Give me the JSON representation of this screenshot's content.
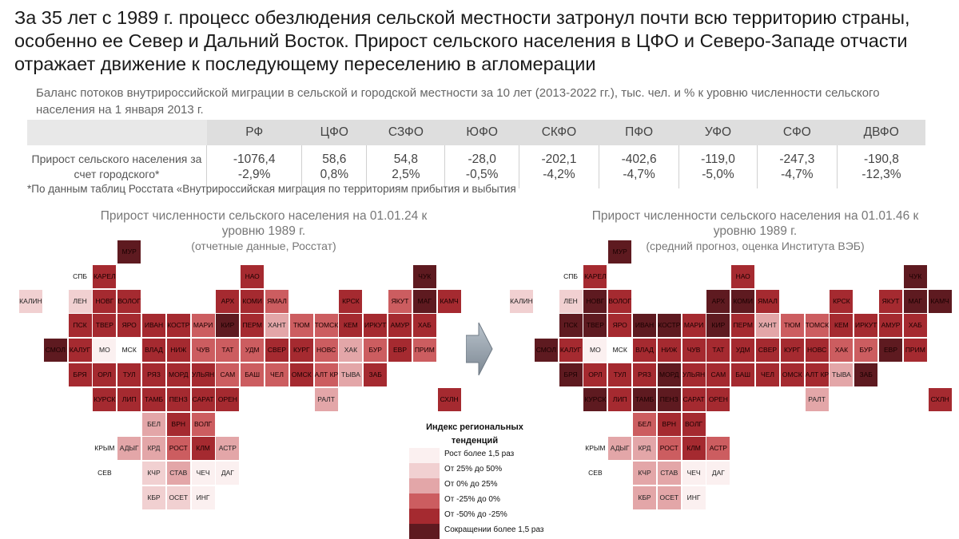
{
  "headline": "За 35 лет с 1989 г. процесс обезлюдения сельской местности затронул почти всю территорию страны, особенно ее Север и Дальний Восток. Прирост сельского населения в ЦФО и Северо-Западе отчасти отражает движение к последующему переселению в агломерации",
  "subtitle": "Баланс потоков внутрироссийской миграции в сельской и городской местности за 10 лет (2013-2022 гг.), тыс. чел. и % к уровню численности сельского населения на 1 января 2013 г.",
  "balance_table": {
    "headers": [
      "РФ",
      "ЦФО",
      "СЗФО",
      "ЮФО",
      "СКФО",
      "ПФО",
      "УФО",
      "СФО",
      "ДВФО"
    ],
    "row_label": "Прирост сельского населения за счет городского*",
    "values": [
      "-1076,4",
      "58,6",
      "54,8",
      "-28,0",
      "-202,1",
      "-402,6",
      "-119,0",
      "-247,3",
      "-190,8"
    ],
    "percents": [
      "-2,9%",
      "0,8%",
      "2,5%",
      "-0,5%",
      "-4,2%",
      "-4,7%",
      "-5,0%",
      "-4,7%",
      "-12,3%"
    ]
  },
  "footnote": "*По данным таблиц Росстата «Внутрироссийская миграция по территориям прибытия и выбытия",
  "maps": [
    {
      "title": "Прирост численности сельского населения на 01.01.24 к уровню 1989 г.",
      "source": "(отчетные данные, Росстат)"
    },
    {
      "title": "Прирост численности сельского населения на 01.01.46 к уровню 1989 г.",
      "source": "(средний прогноз, оценка Института ВЭБ)"
    }
  ],
  "legend": {
    "title": "Индекс региональных тенденций",
    "items": [
      {
        "label": "Рост более 1,5 раз",
        "color": "#fbf0f0"
      },
      {
        "label": "От 25% до 50%",
        "color": "#f1d0d1"
      },
      {
        "label": "От 0% до 25%",
        "color": "#e3a6a8"
      },
      {
        "label": "От -25% до 0%",
        "color": "#cc5d60"
      },
      {
        "label": "От -50% до -25%",
        "color": "#a52a30"
      },
      {
        "label": "Сокращении более 1,5 раз",
        "color": "#5e1a20"
      }
    ]
  },
  "chart_data": [
    {
      "type": "heatmap",
      "title": "Прирост численности сельского населения на 01.01.24 к уровню 1989 г.",
      "subtitle": "(отчетные данные, Росстат)",
      "level_scale": [
        "Рост более 1,5 раз",
        "От 25% до 50%",
        "От 0% до 25%",
        "От -25% до 0%",
        "От -50% до -25%",
        "Сокращении более 1,5 раз"
      ],
      "regions": [
        {
          "name": "МУР",
          "level": 5
        },
        {
          "name": "СПБ",
          "level": null
        },
        {
          "name": "КАРЕЛ",
          "level": 4
        },
        {
          "name": "НАО",
          "level": 4
        },
        {
          "name": "ЧУК",
          "level": 5
        },
        {
          "name": "КАЛИН",
          "level": 1
        },
        {
          "name": "ЛЕН",
          "level": 1
        },
        {
          "name": "НОВГ",
          "level": 4
        },
        {
          "name": "ВОЛОГ",
          "level": 4
        },
        {
          "name": "АРХ",
          "level": 4
        },
        {
          "name": "КОМИ",
          "level": 4
        },
        {
          "name": "ЯМАЛ",
          "level": 3
        },
        {
          "name": "КРСК",
          "level": 4
        },
        {
          "name": "ЯКУТ",
          "level": 3
        },
        {
          "name": "МАГ",
          "level": 5
        },
        {
          "name": "КАМЧ",
          "level": 4
        },
        {
          "name": "ПСК",
          "level": 4
        },
        {
          "name": "ТВЕР",
          "level": 4
        },
        {
          "name": "ЯРО",
          "level": 4
        },
        {
          "name": "ИВАН",
          "level": 4
        },
        {
          "name": "КОСТР",
          "level": 4
        },
        {
          "name": "МАРИ",
          "level": 3
        },
        {
          "name": "КИР",
          "level": 5
        },
        {
          "name": "ПЕРМ",
          "level": 4
        },
        {
          "name": "ХАНТ",
          "level": 2
        },
        {
          "name": "ТЮМ",
          "level": 3
        },
        {
          "name": "ТОМСК",
          "level": 3
        },
        {
          "name": "КЕМ",
          "level": 4
        },
        {
          "name": "ИРКУТ",
          "level": 4
        },
        {
          "name": "АМУР",
          "level": 4
        },
        {
          "name": "ХАБ",
          "level": 4
        },
        {
          "name": "СМОЛ",
          "level": 5
        },
        {
          "name": "КАЛУГ",
          "level": 4
        },
        {
          "name": "МО",
          "level": 0
        },
        {
          "name": "МСК",
          "level": null
        },
        {
          "name": "ВЛАД",
          "level": 4
        },
        {
          "name": "НИЖ",
          "level": 4
        },
        {
          "name": "ЧУВ",
          "level": 3
        },
        {
          "name": "ТАТ",
          "level": 3
        },
        {
          "name": "УДМ",
          "level": 3
        },
        {
          "name": "СВЕР",
          "level": 4
        },
        {
          "name": "КУРГ",
          "level": 4
        },
        {
          "name": "НОВС",
          "level": 3
        },
        {
          "name": "ХАК",
          "level": 2
        },
        {
          "name": "БУР",
          "level": 3
        },
        {
          "name": "ЕВР",
          "level": 4
        },
        {
          "name": "ПРИМ",
          "level": 3
        },
        {
          "name": "БРЯ",
          "level": 4
        },
        {
          "name": "ОРЛ",
          "level": 4
        },
        {
          "name": "ТУЛ",
          "level": 4
        },
        {
          "name": "РЯЗ",
          "level": 4
        },
        {
          "name": "МОРД",
          "level": 4
        },
        {
          "name": "УЛЬЯН",
          "level": 4
        },
        {
          "name": "САМ",
          "level": 3
        },
        {
          "name": "БАШ",
          "level": 3
        },
        {
          "name": "ЧЕЛ",
          "level": 3
        },
        {
          "name": "ОМСК",
          "level": 4
        },
        {
          "name": "АЛТ КР",
          "level": 3
        },
        {
          "name": "ТЫВА",
          "level": 2
        },
        {
          "name": "ЗАБ",
          "level": 4
        },
        {
          "name": "КУРСК",
          "level": 4
        },
        {
          "name": "ЛИП",
          "level": 4
        },
        {
          "name": "ТАМБ",
          "level": 4
        },
        {
          "name": "ПЕНЗ",
          "level": 4
        },
        {
          "name": "САРАТ",
          "level": 4
        },
        {
          "name": "ОРЕН",
          "level": 4
        },
        {
          "name": "РАЛТ",
          "level": 2
        },
        {
          "name": "СХЛН",
          "level": 4
        },
        {
          "name": "БЕЛ",
          "level": 2
        },
        {
          "name": "ВРН",
          "level": 4
        },
        {
          "name": "ВОЛГ",
          "level": 3
        },
        {
          "name": "КРЫМ",
          "level": null
        },
        {
          "name": "АДЫГ",
          "level": 2
        },
        {
          "name": "КРД",
          "level": 2
        },
        {
          "name": "РОСТ",
          "level": 3
        },
        {
          "name": "КЛМ",
          "level": 4
        },
        {
          "name": "АСТР",
          "level": 2
        },
        {
          "name": "СЕВ",
          "level": null
        },
        {
          "name": "КЧР",
          "level": 1
        },
        {
          "name": "СТАВ",
          "level": 2
        },
        {
          "name": "ЧЕЧ",
          "level": 0
        },
        {
          "name": "ДАГ",
          "level": 0
        },
        {
          "name": "КБР",
          "level": 1
        },
        {
          "name": "ОСЕТ",
          "level": 1
        },
        {
          "name": "ИНГ",
          "level": 0
        }
      ]
    },
    {
      "type": "heatmap",
      "title": "Прирост численности сельского населения на 01.01.46 к уровню 1989 г.",
      "subtitle": "(средний прогноз, оценка Института ВЭБ)",
      "level_scale": [
        "Рост более 1,5 раз",
        "От 25% до 50%",
        "От 0% до 25%",
        "От -25% до 0%",
        "От -50% до -25%",
        "Сокращении более 1,5 раз"
      ],
      "regions": [
        {
          "name": "МУР",
          "level": 5
        },
        {
          "name": "СПБ",
          "level": null
        },
        {
          "name": "КАРЕЛ",
          "level": 4
        },
        {
          "name": "НАО",
          "level": 4
        },
        {
          "name": "ЧУК",
          "level": 5
        },
        {
          "name": "КАЛИН",
          "level": 1
        },
        {
          "name": "ЛЕН",
          "level": 1
        },
        {
          "name": "НОВГ",
          "level": 5
        },
        {
          "name": "ВОЛОГ",
          "level": 4
        },
        {
          "name": "АРХ",
          "level": 5
        },
        {
          "name": "КОМИ",
          "level": 5
        },
        {
          "name": "ЯМАЛ",
          "level": 4
        },
        {
          "name": "КРСК",
          "level": 4
        },
        {
          "name": "ЯКУТ",
          "level": 4
        },
        {
          "name": "МАГ",
          "level": 5
        },
        {
          "name": "КАМЧ",
          "level": 5
        },
        {
          "name": "ПСК",
          "level": 5
        },
        {
          "name": "ТВЕР",
          "level": 5
        },
        {
          "name": "ЯРО",
          "level": 4
        },
        {
          "name": "ИВАН",
          "level": 5
        },
        {
          "name": "КОСТР",
          "level": 5
        },
        {
          "name": "МАРИ",
          "level": 4
        },
        {
          "name": "КИР",
          "level": 5
        },
        {
          "name": "ПЕРМ",
          "level": 4
        },
        {
          "name": "ХАНТ",
          "level": 2
        },
        {
          "name": "ТЮМ",
          "level": 3
        },
        {
          "name": "ТОМСК",
          "level": 3
        },
        {
          "name": "КЕМ",
          "level": 4
        },
        {
          "name": "ИРКУТ",
          "level": 4
        },
        {
          "name": "АМУР",
          "level": 4
        },
        {
          "name": "ХАБ",
          "level": 4
        },
        {
          "name": "СМОЛ",
          "level": 5
        },
        {
          "name": "КАЛУГ",
          "level": 4
        },
        {
          "name": "МО",
          "level": 0
        },
        {
          "name": "МСК",
          "level": null
        },
        {
          "name": "ВЛАД",
          "level": 4
        },
        {
          "name": "НИЖ",
          "level": 4
        },
        {
          "name": "ЧУВ",
          "level": 4
        },
        {
          "name": "ТАТ",
          "level": 4
        },
        {
          "name": "УДМ",
          "level": 4
        },
        {
          "name": "СВЕР",
          "level": 4
        },
        {
          "name": "КУРГ",
          "level": 4
        },
        {
          "name": "НОВС",
          "level": 4
        },
        {
          "name": "ХАК",
          "level": 3
        },
        {
          "name": "БУР",
          "level": 3
        },
        {
          "name": "ЕВР",
          "level": 5
        },
        {
          "name": "ПРИМ",
          "level": 4
        },
        {
          "name": "БРЯ",
          "level": 5
        },
        {
          "name": "ОРЛ",
          "level": 4
        },
        {
          "name": "ТУЛ",
          "level": 4
        },
        {
          "name": "РЯЗ",
          "level": 4
        },
        {
          "name": "МОРД",
          "level": 5
        },
        {
          "name": "УЛЬЯН",
          "level": 4
        },
        {
          "name": "САМ",
          "level": 4
        },
        {
          "name": "БАШ",
          "level": 4
        },
        {
          "name": "ЧЕЛ",
          "level": 4
        },
        {
          "name": "ОМСК",
          "level": 4
        },
        {
          "name": "АЛТ КР",
          "level": 4
        },
        {
          "name": "ТЫВА",
          "level": 2
        },
        {
          "name": "ЗАБ",
          "level": 5
        },
        {
          "name": "КУРСК",
          "level": 5
        },
        {
          "name": "ЛИП",
          "level": 4
        },
        {
          "name": "ТАМБ",
          "level": 5
        },
        {
          "name": "ПЕНЗ",
          "level": 5
        },
        {
          "name": "САРАТ",
          "level": 4
        },
        {
          "name": "ОРЕН",
          "level": 4
        },
        {
          "name": "РАЛТ",
          "level": 2
        },
        {
          "name": "СХЛН",
          "level": 4
        },
        {
          "name": "БЕЛ",
          "level": 3
        },
        {
          "name": "ВРН",
          "level": 4
        },
        {
          "name": "ВОЛГ",
          "level": 4
        },
        {
          "name": "КРЫМ",
          "level": null
        },
        {
          "name": "АДЫГ",
          "level": 2
        },
        {
          "name": "КРД",
          "level": 2
        },
        {
          "name": "РОСТ",
          "level": 3
        },
        {
          "name": "КЛМ",
          "level": 4
        },
        {
          "name": "АСТР",
          "level": 3
        },
        {
          "name": "СЕВ",
          "level": null
        },
        {
          "name": "КЧР",
          "level": 2
        },
        {
          "name": "СТАВ",
          "level": 2
        },
        {
          "name": "ЧЕЧ",
          "level": 0
        },
        {
          "name": "ДАГ",
          "level": 0
        },
        {
          "name": "КБР",
          "level": 2
        },
        {
          "name": "ОСЕТ",
          "level": 2
        },
        {
          "name": "ИНГ",
          "level": 0
        }
      ]
    }
  ]
}
